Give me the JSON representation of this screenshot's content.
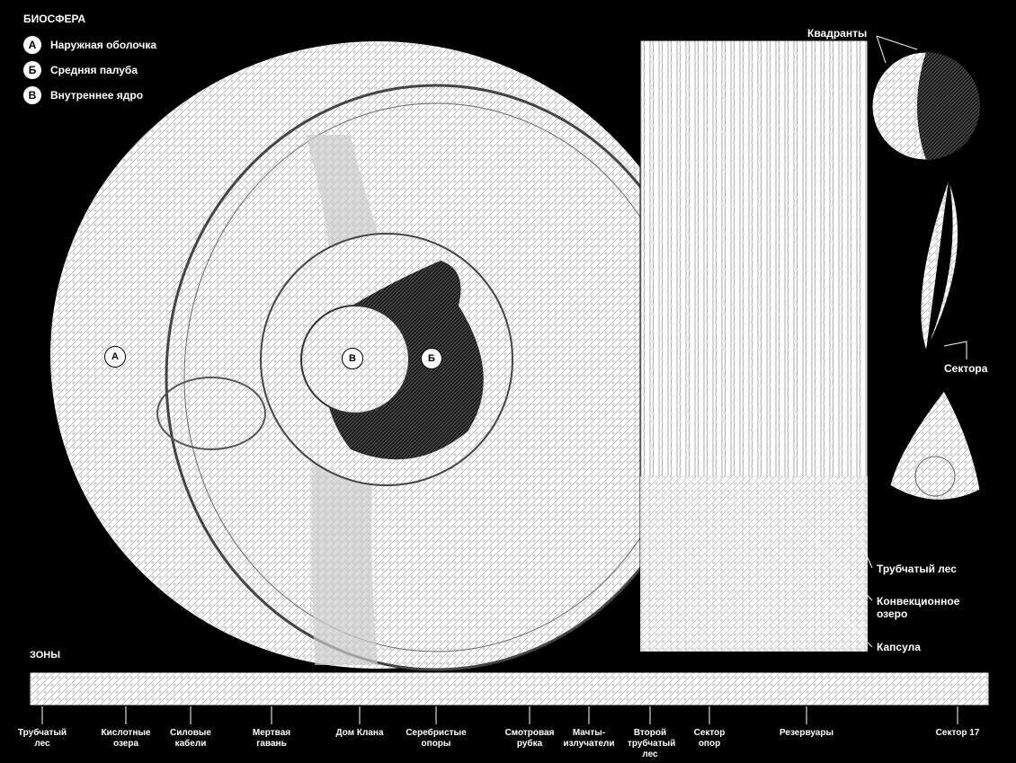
{
  "title": "БИОСФЕРА",
  "legend": [
    {
      "marker": "А",
      "label": "Наружная оболочка"
    },
    {
      "marker": "Б",
      "label": "Средняя палуба"
    },
    {
      "marker": "В",
      "label": "Внутреннее ядро"
    }
  ],
  "sphere_markers": [
    "А",
    "В",
    "Б"
  ],
  "callouts": [
    "Квадранты",
    "Сектора",
    "Трубчатый лес",
    "Конвекционное озеро",
    "Капсула"
  ],
  "zones": {
    "title": "ЗОНЫ",
    "labels": [
      "Трубчатый лес",
      "Кислотные озера",
      "Силовые кабели",
      "Мертвая гавань",
      "Дом Клана",
      "Серебристые опоры",
      "Смотровая рубка",
      "Мачты-излучатели",
      "Второй трубчатый лес",
      "Сектор опор",
      "Резервуары",
      "Сектор 17"
    ]
  }
}
